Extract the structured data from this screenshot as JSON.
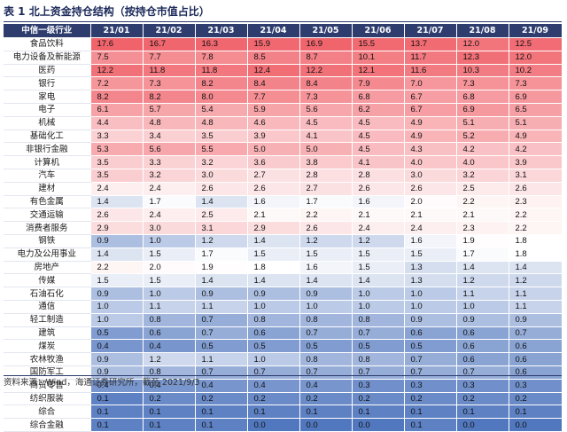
{
  "title": "表 1 北上资金持仓结构（按持仓市值占比）",
  "table": {
    "header_label": "中信一级行业",
    "columns": [
      "21/01",
      "21/02",
      "21/03",
      "21/04",
      "21/05",
      "21/06",
      "21/07",
      "21/08",
      "21/09"
    ],
    "rows": [
      {
        "name": "食品饮料",
        "values": [
          "17.6",
          "16.7",
          "16.3",
          "15.9",
          "16.9",
          "15.5",
          "13.7",
          "12.0",
          "12.5"
        ]
      },
      {
        "name": "电力设备及新能源",
        "values": [
          "7.5",
          "7.7",
          "7.8",
          "8.5",
          "8.7",
          "10.1",
          "11.7",
          "12.3",
          "12.0"
        ]
      },
      {
        "name": "医药",
        "values": [
          "12.2",
          "11.8",
          "11.8",
          "12.4",
          "12.2",
          "12.1",
          "11.6",
          "10.3",
          "10.2"
        ]
      },
      {
        "name": "银行",
        "values": [
          "7.2",
          "7.3",
          "8.2",
          "8.4",
          "8.4",
          "7.9",
          "7.0",
          "7.3",
          "7.3"
        ]
      },
      {
        "name": "家电",
        "values": [
          "8.2",
          "8.2",
          "8.0",
          "7.7",
          "7.3",
          "6.8",
          "6.7",
          "6.8",
          "6.9"
        ]
      },
      {
        "name": "电子",
        "values": [
          "6.1",
          "5.7",
          "5.4",
          "5.9",
          "5.6",
          "6.2",
          "6.7",
          "6.9",
          "6.5"
        ]
      },
      {
        "name": "机械",
        "values": [
          "4.4",
          "4.8",
          "4.8",
          "4.6",
          "4.5",
          "4.5",
          "4.9",
          "5.1",
          "5.1"
        ]
      },
      {
        "name": "基础化工",
        "values": [
          "3.3",
          "3.4",
          "3.5",
          "3.9",
          "4.1",
          "4.5",
          "4.9",
          "5.2",
          "4.9"
        ]
      },
      {
        "name": "非银行金融",
        "values": [
          "5.3",
          "5.6",
          "5.5",
          "5.0",
          "5.0",
          "4.5",
          "4.3",
          "4.2",
          "4.2"
        ]
      },
      {
        "name": "计算机",
        "values": [
          "3.5",
          "3.3",
          "3.2",
          "3.6",
          "3.8",
          "4.1",
          "4.0",
          "4.0",
          "3.9"
        ]
      },
      {
        "name": "汽车",
        "values": [
          "3.5",
          "3.2",
          "3.0",
          "2.7",
          "2.8",
          "2.8",
          "3.0",
          "3.2",
          "3.1"
        ]
      },
      {
        "name": "建材",
        "values": [
          "2.4",
          "2.4",
          "2.6",
          "2.6",
          "2.7",
          "2.6",
          "2.6",
          "2.5",
          "2.6"
        ]
      },
      {
        "name": "有色金属",
        "values": [
          "1.4",
          "1.7",
          "1.4",
          "1.6",
          "1.7",
          "1.6",
          "2.0",
          "2.2",
          "2.3"
        ]
      },
      {
        "name": "交通运输",
        "values": [
          "2.6",
          "2.4",
          "2.5",
          "2.1",
          "2.2",
          "2.1",
          "2.1",
          "2.1",
          "2.2"
        ]
      },
      {
        "name": "消费者服务",
        "values": [
          "2.9",
          "3.0",
          "3.1",
          "2.9",
          "2.6",
          "2.4",
          "2.4",
          "2.3",
          "2.2"
        ]
      },
      {
        "name": "钢铁",
        "values": [
          "0.9",
          "1.0",
          "1.2",
          "1.4",
          "1.2",
          "1.2",
          "1.6",
          "1.9",
          "1.8"
        ]
      },
      {
        "name": "电力及公用事业",
        "values": [
          "1.4",
          "1.5",
          "1.7",
          "1.5",
          "1.5",
          "1.5",
          "1.5",
          "1.7",
          "1.8"
        ]
      },
      {
        "name": "房地产",
        "values": [
          "2.2",
          "2.0",
          "1.9",
          "1.8",
          "1.6",
          "1.5",
          "1.3",
          "1.4",
          "1.4"
        ]
      },
      {
        "name": "传媒",
        "values": [
          "1.5",
          "1.5",
          "1.4",
          "1.4",
          "1.4",
          "1.4",
          "1.3",
          "1.2",
          "1.2"
        ]
      },
      {
        "name": "石油石化",
        "values": [
          "0.9",
          "1.0",
          "0.9",
          "0.9",
          "0.9",
          "1.0",
          "1.0",
          "1.1",
          "1.1"
        ]
      },
      {
        "name": "通信",
        "values": [
          "1.0",
          "1.1",
          "1.1",
          "1.0",
          "1.0",
          "1.0",
          "1.0",
          "1.0",
          "1.1"
        ]
      },
      {
        "name": "轻工制造",
        "values": [
          "1.0",
          "0.8",
          "0.7",
          "0.8",
          "0.8",
          "0.8",
          "0.9",
          "0.9",
          "0.9"
        ]
      },
      {
        "name": "建筑",
        "values": [
          "0.5",
          "0.6",
          "0.7",
          "0.6",
          "0.7",
          "0.7",
          "0.6",
          "0.6",
          "0.7"
        ]
      },
      {
        "name": "煤炭",
        "values": [
          "0.4",
          "0.4",
          "0.5",
          "0.5",
          "0.5",
          "0.5",
          "0.5",
          "0.6",
          "0.6"
        ]
      },
      {
        "name": "农林牧渔",
        "values": [
          "0.9",
          "1.2",
          "1.1",
          "1.0",
          "0.8",
          "0.8",
          "0.7",
          "0.6",
          "0.6"
        ]
      },
      {
        "name": "国防军工",
        "values": [
          "0.9",
          "0.8",
          "0.7",
          "0.7",
          "0.7",
          "0.7",
          "0.7",
          "0.7",
          "0.6"
        ]
      },
      {
        "name": "商贸零售",
        "values": [
          "0.4",
          "0.4",
          "0.4",
          "0.4",
          "0.4",
          "0.3",
          "0.3",
          "0.3",
          "0.3"
        ]
      },
      {
        "name": "纺织服装",
        "values": [
          "0.1",
          "0.2",
          "0.2",
          "0.2",
          "0.2",
          "0.2",
          "0.2",
          "0.2",
          "0.2"
        ]
      },
      {
        "name": "综合",
        "values": [
          "0.1",
          "0.1",
          "0.1",
          "0.1",
          "0.1",
          "0.1",
          "0.1",
          "0.1",
          "0.1"
        ]
      },
      {
        "name": "综合金融",
        "values": [
          "0.1",
          "0.1",
          "0.1",
          "0.0",
          "0.0",
          "0.0",
          "0.1",
          "0.0",
          "0.0"
        ]
      }
    ]
  },
  "source_note": "资料来源：Wind，海通证券研究所，截至 2021/9/3",
  "colors": {
    "header_bg": "#2e3d6e",
    "high_color": "#f0636b",
    "mid_color": "#ffffff",
    "low_color": "#4f76be"
  }
}
